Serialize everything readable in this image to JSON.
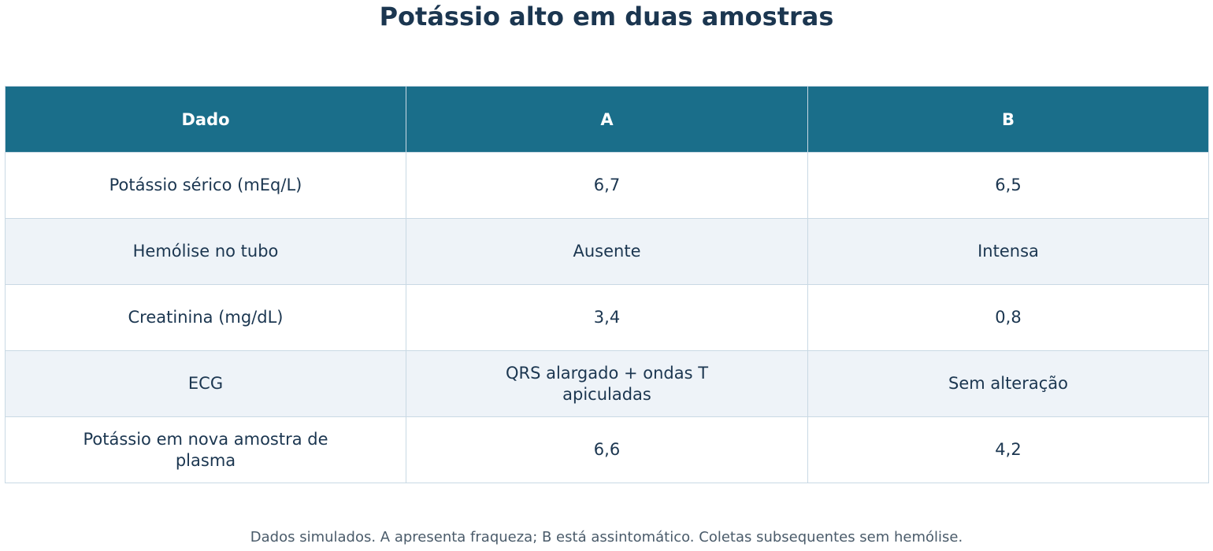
{
  "title": "Potássio alto em duas amostras",
  "table": {
    "header": [
      "Dado",
      "A",
      "B"
    ],
    "rows": [
      [
        "Potássio sérico (mEq/L)",
        "6,7",
        "6,5"
      ],
      [
        "Hemólise no tubo",
        "Ausente",
        "Intensa"
      ],
      [
        "Creatinina (mg/dL)",
        "3,4",
        "0,8"
      ],
      [
        "ECG",
        "QRS alargado + ondas T apiculadas",
        "Sem alteração"
      ],
      [
        "Potássio em nova amostra de plasma",
        "6,6",
        "4,2"
      ]
    ]
  },
  "footnote": "Dados simulados. A apresenta fraqueza; B está assintomático. Coletas subsequentes sem hemólise."
}
